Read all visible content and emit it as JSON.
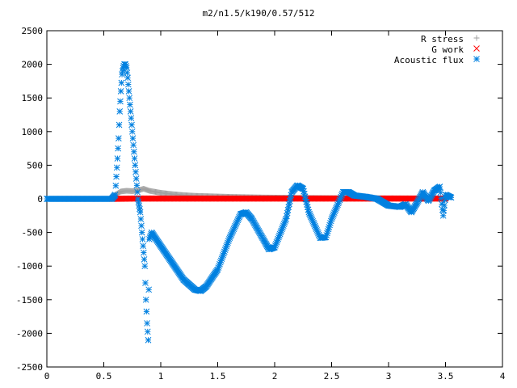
{
  "chart_data": {
    "type": "scatter",
    "title": "m2/n1.5/k190/0.57/512",
    "xlabel": "",
    "ylabel": "",
    "xlim": [
      0,
      4
    ],
    "ylim": [
      -2500,
      2500
    ],
    "xticks": [
      0,
      0.5,
      1,
      1.5,
      2,
      2.5,
      3,
      3.5,
      4
    ],
    "xtick_labels": [
      "0",
      "0.5",
      "1",
      "1.5",
      "2",
      "2.5",
      "3",
      "3.5",
      "4"
    ],
    "yticks": [
      2500,
      2000,
      1500,
      1000,
      500,
      0,
      -500,
      -1000,
      -1500,
      -2000,
      -2500
    ],
    "ytick_labels": [
      "2500",
      "2000",
      "1500",
      "1000",
      "500",
      "0",
      "-500",
      "-1000",
      "-1500",
      "-2000",
      "-2500"
    ],
    "grid": false,
    "legend_position": "top-right",
    "series": [
      {
        "name": "R stress",
        "marker": "plus",
        "color": "#a0a0a0",
        "points": [
          [
            0.0,
            0
          ],
          [
            0.3,
            0
          ],
          [
            0.55,
            0
          ],
          [
            0.6,
            60
          ],
          [
            0.65,
            110
          ],
          [
            0.7,
            120
          ],
          [
            0.75,
            115
          ],
          [
            0.8,
            125
          ],
          [
            0.85,
            150
          ],
          [
            0.9,
            120
          ],
          [
            1.0,
            90
          ],
          [
            1.1,
            70
          ],
          [
            1.2,
            55
          ],
          [
            1.3,
            45
          ],
          [
            1.4,
            40
          ],
          [
            1.5,
            35
          ],
          [
            1.6,
            30
          ],
          [
            1.75,
            25
          ],
          [
            1.9,
            20
          ],
          [
            2.2,
            15
          ],
          [
            2.6,
            10
          ],
          [
            3.0,
            8
          ],
          [
            3.5,
            5
          ]
        ]
      },
      {
        "name": "G work",
        "marker": "cross",
        "color": "#ff0000",
        "points": [
          [
            0.57,
            0
          ],
          [
            0.8,
            5
          ],
          [
            1.0,
            5
          ],
          [
            1.5,
            5
          ],
          [
            2.0,
            5
          ],
          [
            2.5,
            5
          ],
          [
            3.0,
            5
          ],
          [
            3.5,
            5
          ]
        ]
      },
      {
        "name": "Acoustic flux",
        "marker": "star",
        "color": "#0080e0",
        "points": [
          [
            0.0,
            0
          ],
          [
            0.57,
            0
          ],
          [
            0.6,
            60
          ],
          [
            0.62,
            600
          ],
          [
            0.63,
            900
          ],
          [
            0.64,
            1300
          ],
          [
            0.65,
            1600
          ],
          [
            0.66,
            1850
          ],
          [
            0.67,
            1950
          ],
          [
            0.68,
            2000
          ],
          [
            0.69,
            2000
          ],
          [
            0.7,
            1950
          ],
          [
            0.71,
            1800
          ],
          [
            0.72,
            1600
          ],
          [
            0.73,
            1400
          ],
          [
            0.74,
            1200
          ],
          [
            0.75,
            1000
          ],
          [
            0.76,
            800
          ],
          [
            0.77,
            600
          ],
          [
            0.78,
            400
          ],
          [
            0.79,
            200
          ],
          [
            0.8,
            0
          ],
          [
            0.82,
            -200
          ],
          [
            0.84,
            -600
          ],
          [
            0.86,
            -1000
          ],
          [
            0.87,
            -1500
          ],
          [
            0.88,
            -1850
          ],
          [
            0.89,
            -2100
          ],
          [
            0.9,
            -600
          ],
          [
            0.92,
            -500
          ],
          [
            1.0,
            -700
          ],
          [
            1.1,
            -950
          ],
          [
            1.2,
            -1200
          ],
          [
            1.3,
            -1350
          ],
          [
            1.35,
            -1370
          ],
          [
            1.4,
            -1300
          ],
          [
            1.5,
            -1050
          ],
          [
            1.6,
            -600
          ],
          [
            1.7,
            -230
          ],
          [
            1.75,
            -200
          ],
          [
            1.8,
            -300
          ],
          [
            1.9,
            -600
          ],
          [
            1.95,
            -750
          ],
          [
            2.0,
            -720
          ],
          [
            2.1,
            -300
          ],
          [
            2.15,
            100
          ],
          [
            2.2,
            200
          ],
          [
            2.25,
            150
          ],
          [
            2.3,
            -200
          ],
          [
            2.4,
            -580
          ],
          [
            2.45,
            -570
          ],
          [
            2.5,
            -300
          ],
          [
            2.6,
            100
          ],
          [
            2.65,
            100
          ],
          [
            2.7,
            50
          ],
          [
            2.8,
            30
          ],
          [
            2.9,
            0
          ],
          [
            3.0,
            -100
          ],
          [
            3.1,
            -120
          ],
          [
            3.15,
            -80
          ],
          [
            3.2,
            -200
          ],
          [
            3.25,
            -60
          ],
          [
            3.3,
            100
          ],
          [
            3.35,
            -30
          ],
          [
            3.4,
            120
          ],
          [
            3.45,
            180
          ],
          [
            3.48,
            -250
          ],
          [
            3.5,
            60
          ],
          [
            3.55,
            20
          ]
        ]
      }
    ]
  }
}
